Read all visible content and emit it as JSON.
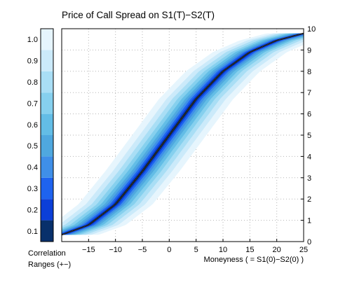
{
  "chart_data": {
    "type": "area",
    "title": "Price of Call Spread on S1(T)−S2(T)",
    "xlabel": "Moneyness ( = S1(0)−S2(0) )",
    "ylabel": "",
    "xlim": [
      -20,
      25
    ],
    "ylim": [
      0,
      10
    ],
    "x_ticks": [
      -15,
      -10,
      -5,
      0,
      5,
      10,
      15,
      20,
      25
    ],
    "x_tick_labels": [
      "−15",
      "−10",
      "−5",
      "0",
      "5",
      "10",
      "15",
      "20",
      "25"
    ],
    "y_ticks": [
      0,
      1,
      2,
      3,
      4,
      5,
      6,
      7,
      8,
      9,
      10
    ],
    "y_axis_side": "right",
    "grid": true,
    "grid_style": "dotted",
    "center_curve": {
      "name": "",
      "color": "#000000",
      "x": [
        -20,
        -15,
        -10,
        -5,
        0,
        5,
        10,
        15,
        20,
        25
      ],
      "y": [
        0.32,
        0.78,
        1.75,
        3.3,
        5.0,
        6.7,
        8.0,
        8.9,
        9.45,
        9.78
      ]
    },
    "bands": [
      {
        "label": "0.1",
        "color": "#08306b",
        "half_width": 0.05
      },
      {
        "label": "0.2",
        "color": "#0b3fd8",
        "half_width": 0.1
      },
      {
        "label": "0.3",
        "color": "#1e63ef",
        "half_width": 0.17
      },
      {
        "label": "0.4",
        "color": "#3f8fe8",
        "half_width": 0.25
      },
      {
        "label": "0.5",
        "color": "#4fa8df",
        "half_width": 0.34
      },
      {
        "label": "0.6",
        "color": "#63bde6",
        "half_width": 0.45
      },
      {
        "label": "0.7",
        "color": "#86d0ee",
        "half_width": 0.58
      },
      {
        "label": "0.8",
        "color": "#a9def5",
        "half_width": 0.74
      },
      {
        "label": "0.9",
        "color": "#cbeafa",
        "half_width": 0.92
      },
      {
        "label": "1.0",
        "color": "#e6f5fd",
        "half_width": 1.15
      }
    ],
    "colorbar": {
      "tick_labels": [
        "0.1",
        "0.2",
        "0.3",
        "0.4",
        "0.5",
        "0.6",
        "0.7",
        "0.8",
        "0.9",
        "1.0"
      ],
      "caption_line1": "Correlation",
      "caption_line2": "Ranges (+−)"
    }
  }
}
